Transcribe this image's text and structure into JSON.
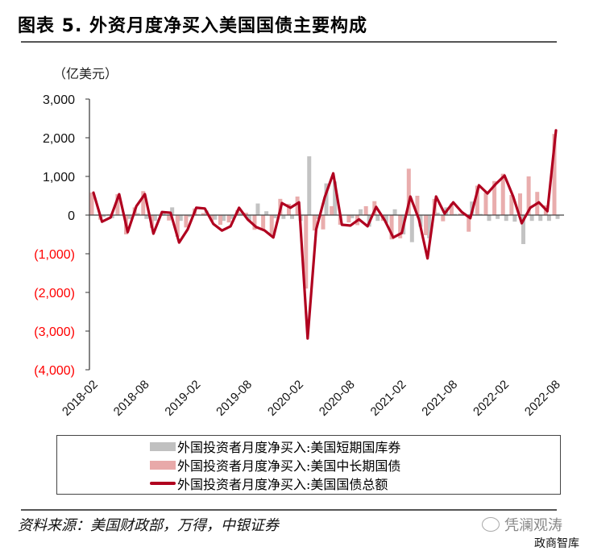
{
  "title": "图表 5. 外资月度净买入美国国债主要构成",
  "unit_label": "（亿美元）",
  "source": "资料来源：美国财政部，万得，中银证券",
  "watermark": {
    "primary": "凭澜观涛",
    "secondary": "政商智库"
  },
  "legend": [
    {
      "label": "外国投资者月度净买入:美国短期国库券",
      "color": "#c0c0c0",
      "kind": "bar"
    },
    {
      "label": "外国投资者月度净买入:美国中长期国债",
      "color": "#e8a9a9",
      "kind": "bar"
    },
    {
      "label": "外国投资者月度净买入:美国国债总额",
      "color": "#b0001f",
      "kind": "line"
    }
  ],
  "chart_data": {
    "type": "bar+line",
    "title": "外资月度净买入美国国债主要构成",
    "xlabel": "",
    "ylabel": "亿美元",
    "ylim": [
      -4000,
      3000
    ],
    "yticks": [
      3000,
      2000,
      1000,
      0,
      -1000,
      -2000,
      -3000,
      -4000
    ],
    "ytick_labels": [
      "3,000",
      "2,000",
      "1,000",
      "0",
      "(1,000)",
      "(2,000)",
      "(3,000)",
      "(4,000)"
    ],
    "negative_tick_color": "#ff0000",
    "xtick_labels": [
      "2018-02",
      "2018-08",
      "2019-02",
      "2019-08",
      "2020-02",
      "2020-08",
      "2021-02",
      "2021-08",
      "2022-02",
      "2022-08"
    ],
    "grid": false,
    "legend_position": "bottom",
    "x": [
      "2018-02",
      "2018-03",
      "2018-04",
      "2018-05",
      "2018-06",
      "2018-07",
      "2018-08",
      "2018-09",
      "2018-10",
      "2018-11",
      "2018-12",
      "2019-01",
      "2019-02",
      "2019-03",
      "2019-04",
      "2019-05",
      "2019-06",
      "2019-07",
      "2019-08",
      "2019-09",
      "2019-10",
      "2019-11",
      "2019-12",
      "2020-01",
      "2020-02",
      "2020-03",
      "2020-04",
      "2020-05",
      "2020-06",
      "2020-07",
      "2020-08",
      "2020-09",
      "2020-10",
      "2020-11",
      "2020-12",
      "2021-01",
      "2021-02",
      "2021-03",
      "2021-04",
      "2021-05",
      "2021-06",
      "2021-07",
      "2021-08",
      "2021-09",
      "2021-10",
      "2021-11",
      "2021-12",
      "2022-01",
      "2022-02",
      "2022-03",
      "2022-04",
      "2022-05",
      "2022-06",
      "2022-07",
      "2022-08"
    ],
    "series": [
      {
        "name": "外国投资者月度净买入:美国短期国库券",
        "type": "bar",
        "color": "#c0c0c0",
        "values": [
          0,
          -50,
          -80,
          0,
          -100,
          50,
          -100,
          -150,
          80,
          200,
          -150,
          -50,
          20,
          120,
          -120,
          -150,
          -100,
          60,
          -150,
          300,
          100,
          -80,
          -100,
          -100,
          -150,
          1520,
          -100,
          820,
          870,
          0,
          -80,
          150,
          -300,
          -150,
          -200,
          150,
          -500,
          -700,
          -300,
          -600,
          60,
          200,
          30,
          40,
          350,
          30,
          -150,
          -100,
          -150,
          -170,
          -750,
          -150,
          -150,
          -150,
          -100
        ]
      },
      {
        "name": "外国投资者月度净买入:美国中长期国债",
        "type": "bar",
        "color": "#e8a9a9",
        "values": [
          580,
          -120,
          20,
          540,
          -500,
          200,
          620,
          -330,
          -20,
          -140,
          -560,
          -320,
          170,
          50,
          -150,
          -250,
          -190,
          130,
          60,
          -380,
          -380,
          -500,
          420,
          290,
          480,
          -1900,
          -400,
          -370,
          230,
          -250,
          -190,
          -260,
          230,
          360,
          -150,
          -630,
          -600,
          1200,
          500,
          -520,
          420,
          -160,
          300,
          40,
          -430,
          760,
          580,
          880,
          1070,
          520,
          560,
          1000,
          600,
          250,
          2100
        ]
      },
      {
        "name": "外国投资者月度净买入:美国国债总额",
        "type": "line",
        "color": "#b0001f",
        "values": [
          580,
          -170,
          -60,
          540,
          -440,
          230,
          540,
          -480,
          80,
          60,
          -710,
          -370,
          190,
          170,
          -230,
          -400,
          -290,
          190,
          -110,
          -310,
          -400,
          -580,
          310,
          190,
          330,
          -3190,
          -370,
          460,
          1080,
          -250,
          -270,
          -110,
          -290,
          210,
          -130,
          -580,
          -460,
          480,
          -110,
          -1120,
          480,
          40,
          330,
          80,
          -80,
          770,
          560,
          810,
          1020,
          480,
          -210,
          190,
          330,
          100,
          2190
        ]
      }
    ]
  }
}
